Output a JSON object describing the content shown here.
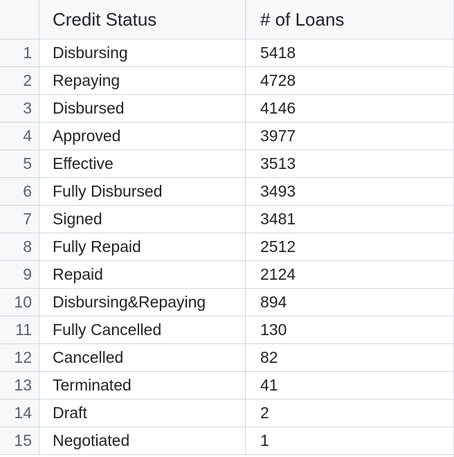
{
  "table": {
    "columns": {
      "status": "Credit Status",
      "loans": "# of Loans"
    },
    "rows": [
      {
        "index": "1",
        "status": "Disbursing",
        "loans": "5418"
      },
      {
        "index": "2",
        "status": "Repaying",
        "loans": "4728"
      },
      {
        "index": "3",
        "status": "Disbursed",
        "loans": "4146"
      },
      {
        "index": "4",
        "status": "Approved",
        "loans": "3977"
      },
      {
        "index": "5",
        "status": "Effective",
        "loans": "3513"
      },
      {
        "index": "6",
        "status": "Fully Disbursed",
        "loans": "3493"
      },
      {
        "index": "7",
        "status": "Signed",
        "loans": "3481"
      },
      {
        "index": "8",
        "status": "Fully Repaid",
        "loans": "2512"
      },
      {
        "index": "9",
        "status": "Repaid",
        "loans": "2124"
      },
      {
        "index": "10",
        "status": "Disbursing&Repaying",
        "loans": "894"
      },
      {
        "index": "11",
        "status": "Fully Cancelled",
        "loans": "130"
      },
      {
        "index": "12",
        "status": "Cancelled",
        "loans": "82"
      },
      {
        "index": "13",
        "status": "Terminated",
        "loans": "41"
      },
      {
        "index": "14",
        "status": "Draft",
        "loans": "2"
      },
      {
        "index": "15",
        "status": "Negotiated",
        "loans": "1"
      }
    ]
  },
  "colors": {
    "header_bg": "#f6f8fa",
    "border": "#d0d7de",
    "index_text": "#59636e"
  }
}
